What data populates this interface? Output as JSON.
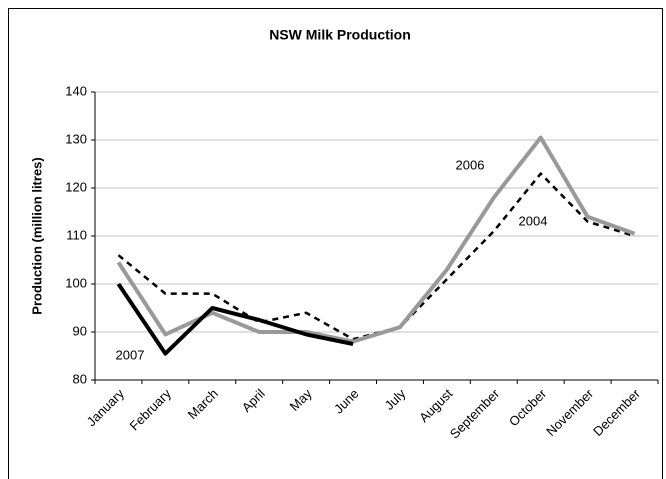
{
  "chart_data": {
    "type": "line",
    "title": "NSW Milk Production",
    "y_label": "Production (million litres)",
    "categories": [
      "January",
      "February",
      "March",
      "April",
      "May",
      "June",
      "July",
      "August",
      "September",
      "October",
      "November",
      "December"
    ],
    "series": [
      {
        "name": "2004",
        "color": "#000000",
        "style": "dashed",
        "width": 2.5,
        "values": [
          106,
          98,
          98,
          92,
          94,
          88.5,
          91,
          101,
          111,
          123,
          113,
          110
        ]
      },
      {
        "name": "2006",
        "color": "#999999",
        "style": "solid",
        "width": 4,
        "values": [
          104.5,
          89.5,
          94,
          90,
          90,
          88,
          91,
          103,
          118,
          130.5,
          114,
          110.5
        ]
      },
      {
        "name": "2007",
        "color": "#000000",
        "style": "solid",
        "width": 4,
        "values": [
          100,
          85.5,
          95,
          92.5,
          89.5,
          87.5,
          null,
          null,
          null,
          null,
          null,
          null
        ]
      }
    ],
    "ylim": [
      80,
      140
    ],
    "yticks": [
      80,
      90,
      100,
      110,
      120,
      130,
      140
    ],
    "grid": true
  }
}
